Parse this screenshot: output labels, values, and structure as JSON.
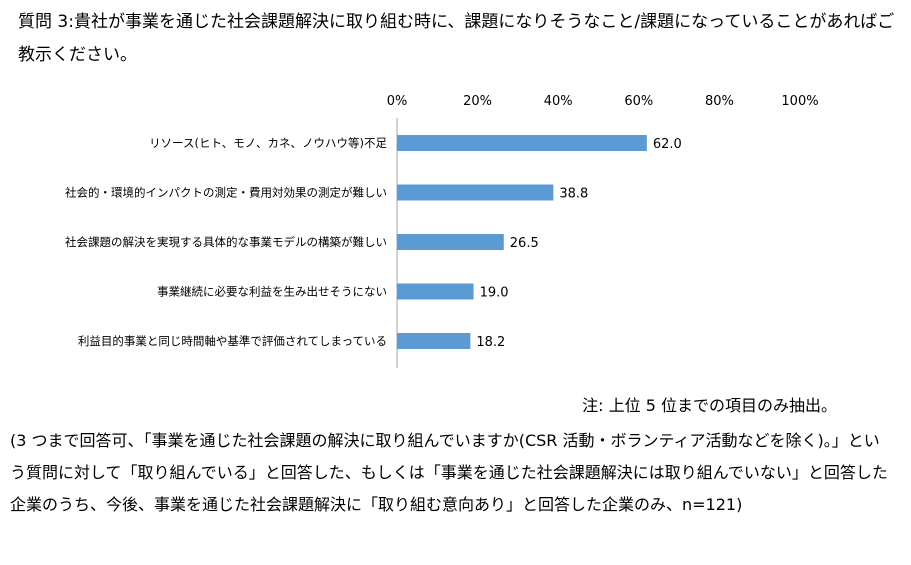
{
  "question": {
    "text": "質問 3:貴社が事業を通じた社会課題解決に取り組む時に、課題になりそうなこと/課題になっていることがあればご教示ください。"
  },
  "chart_data": {
    "type": "bar",
    "orientation": "horizontal",
    "categories": [
      "リソース(ヒト、モノ、カネ、ノウハウ等)不足",
      "社会的・環境的インパクトの測定・費用対効果の測定が難しい",
      "社会課題の解決を実現する具体的な事業モデルの構築が難しい",
      "事業継続に必要な利益を生み出せそうにない",
      "利益目的事業と同じ時間軸や基準で評価されてしまっている"
    ],
    "values": [
      62.0,
      38.8,
      26.5,
      19.0,
      18.2
    ],
    "value_labels": [
      "62.0",
      "38.8",
      "26.5",
      "19.0",
      "18.2"
    ],
    "xlim": [
      0,
      100
    ],
    "ticks": [
      0,
      20,
      40,
      60,
      80,
      100
    ],
    "tick_labels": [
      "0%",
      "20%",
      "40%",
      "60%",
      "80%",
      "100%"
    ],
    "axis_position": "top",
    "grid": false,
    "bar_color": "#5B9BD5",
    "title": "",
    "xlabel": "",
    "ylabel": ""
  },
  "note": {
    "text": "注: 上位 5 位までの項目のみ抽出。"
  },
  "footnote": {
    "text": "(3 つまで回答可、「事業を通じた社会課題の解決に取り組んでいますか(CSR 活動・ボランティア活動などを除く)。」という質問に対して「取り組んでいる」と回答した、もしくは「事業を通じた社会課題解決には取り組んでいない」と回答した企業のうち、今後、事業を通じた社会課題解決に「取り組む意向あり」と回答した企業のみ、n=121)"
  }
}
